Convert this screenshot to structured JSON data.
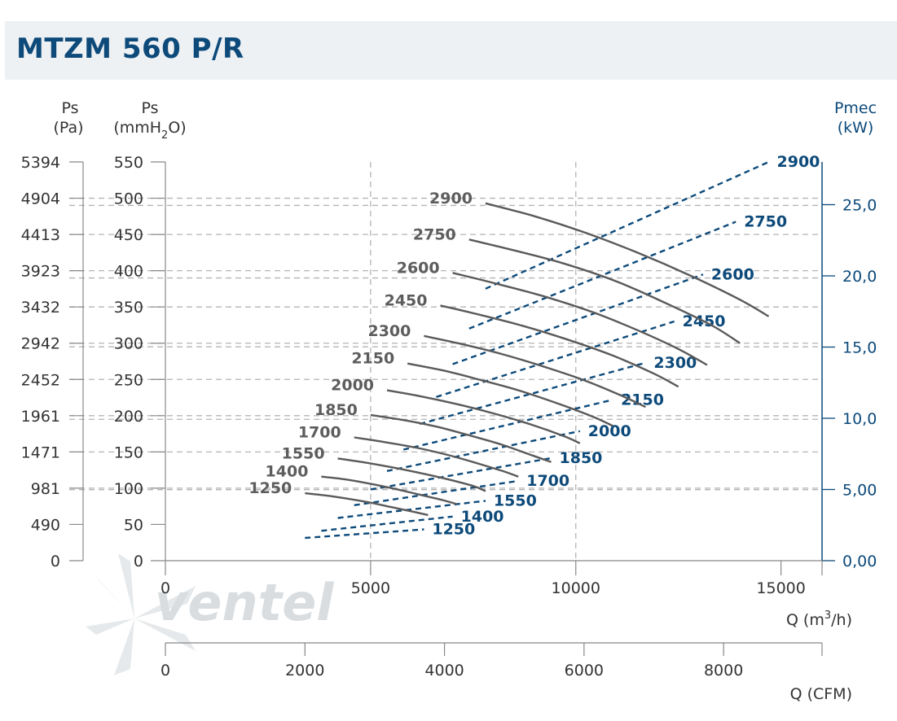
{
  "title": "MTZM 560 P/R",
  "watermark": "ventel",
  "chart_data": {
    "type": "line",
    "title": "MTZM 560 P/R",
    "x": {
      "label": "Q (m3/h)",
      "range": [
        0,
        16000
      ],
      "ticks": [
        0,
        5000,
        10000,
        15000
      ],
      "tick_labels": [
        "0",
        "5000",
        "10000",
        "15000"
      ]
    },
    "x2": {
      "label": "Q (CFM)",
      "range": [
        0,
        9411
      ],
      "ticks": [
        0,
        2000,
        4000,
        6000,
        8000
      ],
      "tick_labels": [
        "0",
        "2000",
        "4000",
        "6000",
        "8000"
      ]
    },
    "y_left_pa": {
      "label_top": "Ps",
      "label_bottom": "(Pa)",
      "tick_labels": [
        "0",
        "490",
        "981",
        "1471",
        "1961",
        "2452",
        "2942",
        "3432",
        "3923",
        "4413",
        "4904",
        "5394"
      ]
    },
    "y_left_mmh2o": {
      "label_top": "Ps",
      "label_bottom_pre": "(mmH",
      "label_bottom_sub": "2",
      "label_bottom_post": "O)",
      "range": [
        0,
        550
      ],
      "ticks": [
        0,
        50,
        100,
        150,
        200,
        250,
        300,
        350,
        400,
        450,
        500,
        550
      ],
      "tick_labels": [
        "0",
        "50",
        "100",
        "150",
        "200",
        "250",
        "300",
        "350",
        "400",
        "450",
        "500",
        "550"
      ]
    },
    "y_right": {
      "label_top": "Pmec",
      "label_bottom": "(kW)",
      "range": [
        0,
        28
      ],
      "ticks": [
        0,
        5,
        10,
        15,
        20,
        25
      ],
      "tick_labels": [
        "0,00",
        "5,00",
        "10,0",
        "15,0",
        "20,0",
        "25,0"
      ]
    },
    "pressure_curves": [
      {
        "name": "2900",
        "points": [
          [
            7800,
            493
          ],
          [
            9000,
            475
          ],
          [
            10200,
            453
          ],
          [
            11500,
            425
          ],
          [
            12800,
            393
          ],
          [
            14000,
            360
          ],
          [
            14700,
            337
          ]
        ]
      },
      {
        "name": "2750",
        "points": [
          [
            7400,
            443
          ],
          [
            8500,
            428
          ],
          [
            9700,
            410
          ],
          [
            11000,
            385
          ],
          [
            12200,
            355
          ],
          [
            13300,
            325
          ],
          [
            14000,
            300
          ]
        ]
      },
      {
        "name": "2600",
        "points": [
          [
            7000,
            397
          ],
          [
            8000,
            383
          ],
          [
            9200,
            365
          ],
          [
            10400,
            343
          ],
          [
            11500,
            318
          ],
          [
            12500,
            292
          ],
          [
            13200,
            270
          ]
        ]
      },
      {
        "name": "2450",
        "points": [
          [
            6700,
            352
          ],
          [
            7600,
            340
          ],
          [
            8700,
            324
          ],
          [
            9800,
            305
          ],
          [
            10900,
            283
          ],
          [
            11900,
            258
          ],
          [
            12500,
            240
          ]
        ]
      },
      {
        "name": "2300",
        "points": [
          [
            6300,
            310
          ],
          [
            7200,
            299
          ],
          [
            8200,
            285
          ],
          [
            9200,
            268
          ],
          [
            10200,
            249
          ],
          [
            11100,
            228
          ],
          [
            11700,
            212
          ]
        ]
      },
      {
        "name": "2150",
        "points": [
          [
            5900,
            272
          ],
          [
            6800,
            262
          ],
          [
            7700,
            249
          ],
          [
            8600,
            235
          ],
          [
            9500,
            218
          ],
          [
            10400,
            199
          ],
          [
            10900,
            186
          ]
        ]
      },
      {
        "name": "2000",
        "points": [
          [
            5400,
            235
          ],
          [
            6200,
            227
          ],
          [
            7100,
            216
          ],
          [
            8000,
            203
          ],
          [
            8900,
            188
          ],
          [
            9700,
            172
          ],
          [
            10100,
            162
          ]
        ]
      },
      {
        "name": "1850",
        "points": [
          [
            5000,
            201
          ],
          [
            5800,
            194
          ],
          [
            6600,
            185
          ],
          [
            7400,
            173
          ],
          [
            8200,
            160
          ],
          [
            8900,
            146
          ],
          [
            9400,
            136
          ]
        ]
      },
      {
        "name": "1700",
        "points": [
          [
            4600,
            170
          ],
          [
            5300,
            164
          ],
          [
            6100,
            156
          ],
          [
            6800,
            147
          ],
          [
            7500,
            136
          ],
          [
            8200,
            124
          ],
          [
            8600,
            116
          ]
        ]
      },
      {
        "name": "1550",
        "points": [
          [
            4200,
            141
          ],
          [
            4800,
            136
          ],
          [
            5500,
            129
          ],
          [
            6200,
            121
          ],
          [
            6900,
            112
          ],
          [
            7500,
            103
          ],
          [
            7800,
            96
          ]
        ]
      },
      {
        "name": "1400",
        "points": [
          [
            3800,
            116
          ],
          [
            4400,
            112
          ],
          [
            5000,
            106
          ],
          [
            5600,
            99
          ],
          [
            6200,
            91
          ],
          [
            6800,
            83
          ],
          [
            7100,
            78
          ]
        ]
      },
      {
        "name": "1250",
        "points": [
          [
            3400,
            93
          ],
          [
            3900,
            90
          ],
          [
            4500,
            85
          ],
          [
            5000,
            80
          ],
          [
            5500,
            74
          ],
          [
            6000,
            68
          ],
          [
            6400,
            63
          ]
        ]
      }
    ],
    "power_curves": [
      {
        "name": "2900",
        "points": [
          [
            7800,
            19.1
          ],
          [
            14700,
            28.0
          ]
        ]
      },
      {
        "name": "2750",
        "points": [
          [
            7400,
            16.3
          ],
          [
            13900,
            23.8
          ]
        ]
      },
      {
        "name": "2600",
        "points": [
          [
            7000,
            13.8
          ],
          [
            13100,
            20.1
          ]
        ]
      },
      {
        "name": "2450",
        "points": [
          [
            6600,
            11.5
          ],
          [
            12400,
            16.8
          ]
        ]
      },
      {
        "name": "2300",
        "points": [
          [
            6200,
            9.6
          ],
          [
            11700,
            13.9
          ]
        ]
      },
      {
        "name": "2150",
        "points": [
          [
            5800,
            7.8
          ],
          [
            10900,
            11.3
          ]
        ]
      },
      {
        "name": "2000",
        "points": [
          [
            5400,
            6.3
          ],
          [
            10100,
            9.1
          ]
        ]
      },
      {
        "name": "1850",
        "points": [
          [
            5000,
            5.0
          ],
          [
            9400,
            7.2
          ]
        ]
      },
      {
        "name": "1700",
        "points": [
          [
            4600,
            3.9
          ],
          [
            8600,
            5.6
          ]
        ]
      },
      {
        "name": "1550",
        "points": [
          [
            4200,
            3.0
          ],
          [
            7800,
            4.2
          ]
        ]
      },
      {
        "name": "1400",
        "points": [
          [
            3800,
            2.1
          ],
          [
            7000,
            3.1
          ]
        ]
      },
      {
        "name": "1250",
        "points": [
          [
            3400,
            1.6
          ],
          [
            6300,
            2.2
          ]
        ]
      }
    ],
    "gridlines_y_mmh2o": [
      500,
      490,
      450,
      400,
      390,
      350,
      300,
      295,
      250,
      200,
      195,
      150,
      100,
      98
    ],
    "gridlines_x": [
      5000,
      10000
    ],
    "grid": true
  },
  "colors": {
    "title": "#0d4a7a",
    "pressure": "#5a5a5a",
    "power": "#0d4a7a",
    "grid": "#b4b4b4",
    "axis": "#888888",
    "right_axis": "#0d4a7a",
    "title_bg": "#eef1f4"
  }
}
